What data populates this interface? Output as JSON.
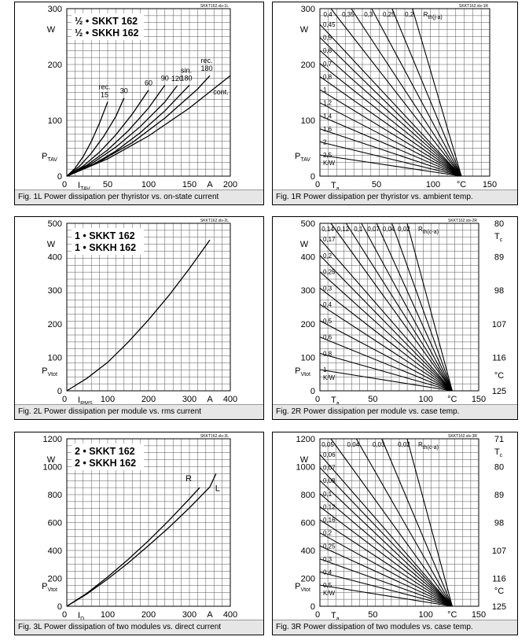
{
  "chart_data": [
    {
      "type": "line",
      "tag": "SKKT162.xls-1L",
      "legend_lines": [
        "½ • SKKT 162",
        "½ • SKKH 162"
      ],
      "ylabel": "P",
      "ylabel_sub": "TAV",
      "yunit": "W",
      "xlabel": "I",
      "xlabel_sub": "TAV",
      "xunit": "A",
      "xlim": [
        0,
        200
      ],
      "ylim": [
        0,
        300
      ],
      "xticks": [
        "0",
        "50",
        "100",
        "150",
        "200"
      ],
      "yticks": [
        "0",
        "100",
        "200",
        "300"
      ],
      "series": [
        {
          "name": "rec. 15",
          "x": [
            0,
            10,
            20,
            30,
            40,
            50
          ],
          "y": [
            0,
            14,
            35,
            62,
            95,
            133
          ]
        },
        {
          "name": "30",
          "x": [
            0,
            15,
            30,
            45,
            60,
            70
          ],
          "y": [
            0,
            17,
            41,
            71,
            107,
            140
          ]
        },
        {
          "name": "60",
          "x": [
            0,
            20,
            40,
            60,
            80,
            100
          ],
          "y": [
            0,
            18,
            43,
            74,
            111,
            154
          ]
        },
        {
          "name": "90",
          "x": [
            0,
            25,
            50,
            75,
            100,
            120
          ],
          "y": [
            0,
            20,
            47,
            81,
            122,
            163
          ]
        },
        {
          "name": "120",
          "x": [
            0,
            30,
            60,
            90,
            120,
            135
          ],
          "y": [
            0,
            22,
            52,
            89,
            133,
            162
          ]
        },
        {
          "name": "sin. 180",
          "x": [
            0,
            30,
            60,
            90,
            120,
            150
          ],
          "y": [
            0,
            19,
            45,
            78,
            117,
            163
          ]
        },
        {
          "name": "rec. 180",
          "x": [
            0,
            40,
            80,
            120,
            160,
            175
          ],
          "y": [
            0,
            26,
            60,
            104,
            156,
            180
          ]
        },
        {
          "name": "cont.",
          "x": [
            0,
            50,
            100,
            150,
            200
          ],
          "y": [
            0,
            31,
            72,
            122,
            180
          ]
        }
      ],
      "caption": "Fig. 1L Power dissipation per thyristor vs. on-state current"
    },
    {
      "type": "line",
      "tag": "SKKT162.xls-1R",
      "ylabel": "P",
      "ylabel_sub": "TAV",
      "yunit": "W",
      "xlabel": "T",
      "xlabel_sub": "a",
      "xunit": "°C",
      "xlim": [
        0,
        150
      ],
      "ylim": [
        0,
        300
      ],
      "xticks": [
        "0",
        "50",
        "100",
        "150"
      ],
      "yticks": [
        "0",
        "100",
        "200",
        "300"
      ],
      "rth_header": "R",
      "rth_header_sub": "th(j-a)",
      "rth_unit": "K/W",
      "convergence": [
        125,
        0
      ],
      "top_labels": [
        "0,4",
        "0,35",
        "0,3",
        "0,25",
        "0,2"
      ],
      "left_labels": [
        "0,45",
        "0,5",
        "0,6",
        "0,7",
        "0,8",
        "1",
        "1,2",
        "1,4",
        "1,6",
        "2",
        "2,5"
      ],
      "caption": "Fig. 1R Power dissipation per thyristor vs. ambient temp."
    },
    {
      "type": "line",
      "tag": "SKKT162.xls-2L",
      "legend_lines": [
        "1 • SKKT 162",
        "1 • SKKH 162"
      ],
      "ylabel": "P",
      "ylabel_sub": "Vtot",
      "yunit": "W",
      "xlabel": "I",
      "xlabel_sub": "RMS",
      "xunit": "A",
      "xlim": [
        0,
        400
      ],
      "ylim": [
        0,
        500
      ],
      "xticks": [
        "0",
        "100",
        "200",
        "300",
        "400"
      ],
      "yticks": [
        "0",
        "100",
        "200",
        "300",
        "400",
        "500"
      ],
      "series": [
        {
          "name": "",
          "x": [
            0,
            50,
            100,
            150,
            200,
            250,
            300,
            350
          ],
          "y": [
            0,
            38,
            85,
            145,
            212,
            285,
            365,
            450
          ]
        }
      ],
      "caption": "Fig. 2L Power dissipation per module vs. rms current"
    },
    {
      "type": "line",
      "tag": "SKKT162.xls-2R",
      "ylabel": "P",
      "ylabel_sub": "Vtot",
      "yunit": "W",
      "xlabel": "T",
      "xlabel_sub": "a",
      "xunit": "°C",
      "xlim": [
        0,
        150
      ],
      "ylim": [
        0,
        500
      ],
      "xticks": [
        "0",
        "50",
        "100",
        "150"
      ],
      "yticks": [
        "0",
        "100",
        "200",
        "300",
        "400",
        "500"
      ],
      "right_label": "T",
      "right_label_sub": "c",
      "right_unit": "°C",
      "right_ticks": [
        "125",
        "116",
        "107",
        "98",
        "89",
        "80"
      ],
      "rth_header": "R",
      "rth_header_sub": "th(c-a)",
      "rth_unit": "K/W",
      "convergence": [
        125,
        0
      ],
      "top_labels": [
        "0,14",
        "0,12",
        "0,1",
        "0,07",
        "0,04",
        "0,02"
      ],
      "left_labels": [
        "0,17",
        "0,2",
        "0,25",
        "0,3",
        "0,4",
        "0,5",
        "0,6",
        "0,8",
        "1"
      ],
      "caption": "Fig. 2R Power dissipation per module vs. case temp."
    },
    {
      "type": "line",
      "tag": "SKKT162.xls-3L",
      "legend_lines": [
        "2 • SKKT 162",
        "2 • SKKH 162"
      ],
      "ylabel": "P",
      "ylabel_sub": "Vtot",
      "yunit": "W",
      "xlabel": "I",
      "xlabel_sub": "D",
      "xunit": "A",
      "xlim": [
        0,
        400
      ],
      "ylim": [
        0,
        1200
      ],
      "xticks": [
        "0",
        "100",
        "200",
        "300",
        "400"
      ],
      "yticks": [
        "0",
        "200",
        "400",
        "600",
        "800",
        "1000",
        "1200"
      ],
      "series": [
        {
          "name": "R",
          "x": [
            0,
            50,
            100,
            150,
            200,
            250,
            300,
            325
          ],
          "y": [
            0,
            95,
            210,
            335,
            470,
            615,
            770,
            850
          ]
        },
        {
          "name": "L",
          "x": [
            0,
            50,
            100,
            150,
            200,
            250,
            300,
            350,
            365
          ],
          "y": [
            0,
            90,
            195,
            310,
            435,
            565,
            705,
            855,
            950
          ]
        }
      ],
      "caption": "Fig. 3L Power dissipation of two modules vs. direct current"
    },
    {
      "type": "line",
      "tag": "SKKT162.xls-3R",
      "ylabel": "P",
      "ylabel_sub": "Vtot",
      "yunit": "W",
      "xlabel": "T",
      "xlabel_sub": "a",
      "xunit": "°C",
      "xlim": [
        0,
        150
      ],
      "ylim": [
        0,
        1200
      ],
      "xticks": [
        "0",
        "50",
        "100",
        "150"
      ],
      "yticks": [
        "0",
        "200",
        "400",
        "600",
        "800",
        "1000",
        "1200"
      ],
      "right_label": "T",
      "right_label_sub": "c",
      "right_unit": "°C",
      "right_ticks": [
        "125",
        "116",
        "107",
        "98",
        "89",
        "80",
        "71"
      ],
      "rth_header": "R",
      "rth_header_sub": "th(c-a)",
      "rth_unit": "K/W",
      "convergence": [
        125,
        0
      ],
      "top_labels": [
        "0,05",
        "0,04",
        "0,03",
        "0,02"
      ],
      "left_labels": [
        "0,06",
        "0,07",
        "0,08",
        "0,1",
        "0,12",
        "0,16",
        "0,2",
        "0,25",
        "0,3",
        "0,4",
        "0,5"
      ],
      "caption": "Fig. 3R Power dissipation of two modules vs. case temp."
    }
  ]
}
